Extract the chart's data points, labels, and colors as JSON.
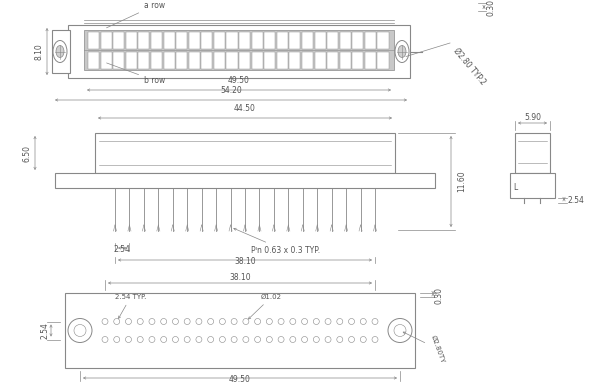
{
  "line_color": "#888888",
  "dim_color": "#888888",
  "text_color": "#555555",
  "fill_light": "#cccccc",
  "fill_dark": "#aaaaaa",
  "view1": {
    "label_a": "a row",
    "label_b": "b row",
    "dim_810": "8.10",
    "dim_4950": "49.50",
    "dim_5420": "54.20",
    "dim_phi280": "Ø2.80 TYP.2",
    "dim_030": "0.30"
  },
  "view2": {
    "dim_4450": "44.50",
    "dim_650": "6.50",
    "dim_1160": "11.60",
    "dim_254": "2.54",
    "dim_pin": "Pᴵn 0.63 x 0.3 TYP.",
    "dim_3810": "38.10"
  },
  "view3": {
    "dim_590": "5.90",
    "dim_254": "2.54"
  },
  "view4": {
    "dim_3810": "38.10",
    "dim_254typ": "2.54 TYP.",
    "dim_phi102": "Ø1.02",
    "dim_phi280ty": "Ø2.80TY",
    "dim_030": "0.30",
    "dim_4950": "49.50",
    "dim_254": "2.54"
  }
}
